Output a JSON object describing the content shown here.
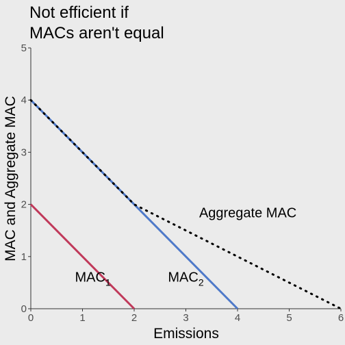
{
  "chart_data": {
    "type": "line",
    "title_lines": [
      "Not efficient if",
      "MACs aren't equal"
    ],
    "xlabel": "Emissions",
    "ylabel": "MAC and Aggregate MAC",
    "xlim": [
      0,
      6
    ],
    "ylim": [
      0,
      5
    ],
    "xticks": [
      0,
      1,
      2,
      3,
      4,
      5,
      6
    ],
    "yticks": [
      0,
      1,
      2,
      3,
      4,
      5
    ],
    "grid": false,
    "series": [
      {
        "name": "MAC",
        "subscript": "1",
        "color": "#c0395a",
        "style": "solid",
        "x": [
          0,
          2
        ],
        "y": [
          2,
          0
        ]
      },
      {
        "name": "MAC",
        "subscript": "2",
        "color": "#4e79c9",
        "style": "solid",
        "x": [
          0,
          4
        ],
        "y": [
          4,
          0
        ]
      },
      {
        "name": "Aggregate MAC",
        "color": "#000000",
        "style": "dotted",
        "x": [
          0,
          2,
          6
        ],
        "y": [
          4,
          2,
          0
        ]
      }
    ],
    "annotations": [
      {
        "series": 0,
        "x": 1.2,
        "y": 0.52
      },
      {
        "series": 1,
        "x": 3.0,
        "y": 0.52
      },
      {
        "series": 2,
        "x": 4.2,
        "y": 1.75
      }
    ]
  }
}
